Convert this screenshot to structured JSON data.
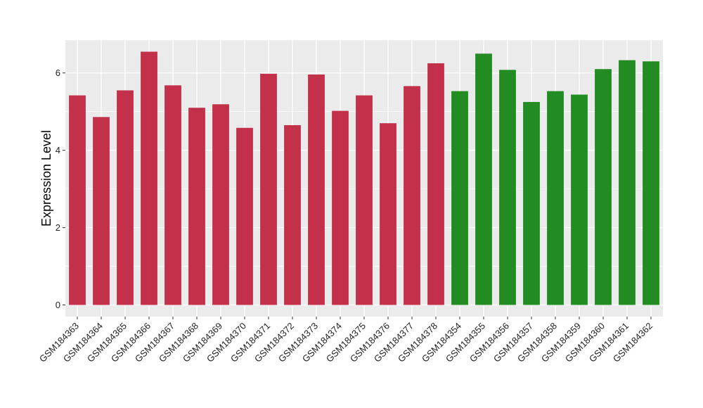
{
  "chart_data": {
    "type": "bar",
    "title": "",
    "xlabel": "",
    "ylabel": "Expression Level",
    "ylim": [
      -0.3,
      6.85
    ],
    "yticks": [
      0,
      2,
      4,
      6
    ],
    "grid": true,
    "legend": "none",
    "categories": [
      "GSM184363",
      "GSM184364",
      "GSM184365",
      "GSM184366",
      "GSM184367",
      "GSM184368",
      "GSM184369",
      "GSM184370",
      "GSM184371",
      "GSM184372",
      "GSM184373",
      "GSM184374",
      "GSM184375",
      "GSM184376",
      "GSM184377",
      "GSM184378",
      "GSM184354",
      "GSM184355",
      "GSM184356",
      "GSM184357",
      "GSM184358",
      "GSM184359",
      "GSM184360",
      "GSM184361",
      "GSM184362"
    ],
    "values": [
      5.42,
      4.86,
      5.55,
      6.55,
      5.68,
      5.1,
      5.19,
      4.58,
      5.98,
      4.65,
      5.96,
      5.02,
      5.42,
      4.7,
      5.66,
      6.25,
      5.53,
      6.5,
      6.08,
      5.25,
      5.53,
      5.44,
      6.1,
      6.33,
      6.3
    ],
    "groups": [
      "red",
      "red",
      "red",
      "red",
      "red",
      "red",
      "red",
      "red",
      "red",
      "red",
      "red",
      "red",
      "red",
      "red",
      "red",
      "red",
      "green",
      "green",
      "green",
      "green",
      "green",
      "green",
      "green",
      "green",
      "green"
    ],
    "colors": {
      "red": "#C3304A",
      "green": "#228B22",
      "panel": "#EBEBEB",
      "grid": "#FFFFFF"
    }
  }
}
